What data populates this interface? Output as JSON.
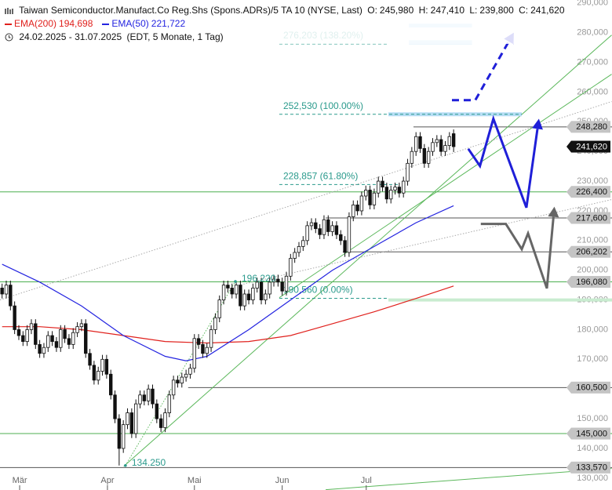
{
  "chart_data": {
    "type": "candlestick",
    "title": "Taiwan Semiconductor.Manufact.Co Reg.Shs (Spons.ADRs)/5 TA 10 (NYSE, Last)",
    "header_values": [
      {
        "name": "O:",
        "value": 245980,
        "label": "245,980"
      },
      {
        "name": "H:",
        "value": 247410,
        "label": "247,410"
      },
      {
        "name": "L:",
        "value": 239800,
        "label": "239,800"
      },
      {
        "name": "C:",
        "value": 241620,
        "label": "241,620"
      }
    ],
    "period": "24.02.2025 - 31.07.2025",
    "period_note": "(EDT, 5 Monate, 1 Tag)",
    "xlim": [
      0.5,
      137.5
    ],
    "ylim": [
      126000,
      291000
    ],
    "xticks": [
      {
        "value": 5.2,
        "label": "Mär"
      },
      {
        "value": 26.2,
        "label": "Apr"
      },
      {
        "value": 47,
        "label": "Mai"
      },
      {
        "value": 68,
        "label": "Jun"
      },
      {
        "value": 88.1,
        "label": "Jul"
      }
    ],
    "yticks": [
      {
        "value": 130000,
        "label": "130,000"
      },
      {
        "value": 140000,
        "label": "140,000"
      },
      {
        "value": 150000,
        "label": "150,000"
      },
      {
        "value": 160000,
        "label": "160,000"
      },
      {
        "value": 170000,
        "label": "170,000"
      },
      {
        "value": 180000,
        "label": "180,000"
      },
      {
        "value": 190000,
        "label": "190,000"
      },
      {
        "value": 200000,
        "label": "200,000"
      },
      {
        "value": 210000,
        "label": "210,000"
      },
      {
        "value": 220000,
        "label": "220,000"
      },
      {
        "value": 230000,
        "label": "230,000"
      },
      {
        "value": 240000,
        "label": "240,000"
      },
      {
        "value": 250000,
        "label": "250,000"
      },
      {
        "value": 260000,
        "label": "260,000"
      },
      {
        "value": 270000,
        "label": "270,000"
      },
      {
        "value": 280000,
        "label": "280,000"
      },
      {
        "value": 290000,
        "label": "290,000"
      }
    ],
    "candles": {
      "open": [
        194000,
        192000,
        195000,
        188000,
        180000,
        178000,
        176000,
        180000,
        182000,
        175000,
        172000,
        174000,
        178000,
        176000,
        174000,
        180000,
        177000,
        175000,
        179000,
        181000,
        182000,
        172000,
        168000,
        163000,
        166000,
        170000,
        165000,
        158000,
        150000,
        140000,
        148000,
        152000,
        145000,
        155000,
        158000,
        156000,
        160000,
        155000,
        150000,
        147000,
        152000,
        158000,
        163000,
        162000,
        164000,
        165000,
        167000,
        177000,
        175000,
        172000,
        174000,
        180000,
        184000,
        190000,
        195000,
        194000,
        192000,
        195000,
        188000,
        192000,
        190000,
        194000,
        196000,
        190000,
        192000,
        196000,
        197000,
        196000,
        193000,
        198000,
        204000,
        206000,
        208000,
        210000,
        215000,
        216000,
        214000,
        212000,
        217000,
        213000,
        215000,
        212000,
        210000,
        206000,
        218000,
        222000,
        220000,
        225000,
        227000,
        222000,
        226000,
        230000,
        228000,
        224000,
        227000,
        228000,
        226000,
        230000,
        236000,
        240000,
        245000,
        241000,
        236000,
        240000,
        243000,
        244000,
        240000,
        242000,
        245980
      ],
      "high": [
        195500,
        196500,
        196500,
        189500,
        181500,
        179500,
        181500,
        183500,
        183500,
        176500,
        175500,
        179500,
        179500,
        177500,
        181500,
        181500,
        178500,
        180500,
        182500,
        183500,
        183500,
        173500,
        169500,
        167500,
        171500,
        171500,
        166500,
        159500,
        151500,
        149500,
        153500,
        153500,
        156500,
        159500,
        159500,
        161500,
        161500,
        156500,
        151500,
        153500,
        159500,
        164500,
        164500,
        165500,
        166500,
        168500,
        178500,
        178500,
        176500,
        175500,
        181500,
        185500,
        191500,
        196500,
        196500,
        195500,
        196500,
        196500,
        193500,
        193500,
        195500,
        197500,
        197500,
        193500,
        197500,
        198500,
        198500,
        197500,
        199500,
        205500,
        207500,
        209500,
        211500,
        216500,
        217500,
        217500,
        215500,
        218500,
        218500,
        216500,
        216500,
        213500,
        211500,
        219500,
        223500,
        223500,
        226500,
        228500,
        228500,
        227500,
        231500,
        231500,
        229500,
        228500,
        229500,
        229500,
        231500,
        237500,
        241500,
        246500,
        246500,
        242500,
        241500,
        244500,
        245500,
        245500,
        243500,
        246500,
        247410
      ],
      "low": [
        190500,
        190500,
        186500,
        178500,
        176500,
        174500,
        174500,
        178500,
        173500,
        170500,
        170500,
        172500,
        174500,
        172500,
        172500,
        175500,
        173500,
        173500,
        177500,
        179500,
        170500,
        166500,
        161500,
        161500,
        164500,
        163500,
        156500,
        148500,
        134250,
        138500,
        146500,
        143500,
        143500,
        153500,
        154500,
        154500,
        153500,
        148500,
        145500,
        145500,
        150500,
        156500,
        160500,
        160500,
        162500,
        163500,
        165500,
        173500,
        170500,
        170500,
        172500,
        178500,
        182500,
        188500,
        192500,
        190500,
        190500,
        186500,
        186500,
        188500,
        188500,
        192500,
        188500,
        188500,
        190500,
        194500,
        194500,
        191500,
        191500,
        196500,
        202500,
        204500,
        206500,
        208500,
        213500,
        212500,
        210500,
        210500,
        211500,
        211500,
        210500,
        208500,
        204500,
        204500,
        216500,
        218500,
        218500,
        223500,
        220500,
        220500,
        224500,
        226500,
        222500,
        222500,
        225500,
        224500,
        224500,
        228500,
        234500,
        238500,
        239500,
        234500,
        234500,
        238500,
        241500,
        238500,
        238500,
        240500,
        239800
      ],
      "close": [
        192000,
        195000,
        188000,
        180000,
        178000,
        176000,
        180000,
        182000,
        175000,
        172000,
        174000,
        178000,
        176000,
        174000,
        180000,
        177000,
        175000,
        179000,
        181000,
        182000,
        172000,
        168000,
        163000,
        166000,
        170000,
        165000,
        158000,
        150000,
        140000,
        148000,
        152000,
        145000,
        155000,
        158000,
        156000,
        160000,
        155000,
        150000,
        147000,
        152000,
        158000,
        163000,
        162000,
        164000,
        165000,
        167000,
        177000,
        175000,
        172000,
        174000,
        180000,
        184000,
        190000,
        195000,
        194000,
        192000,
        195000,
        188000,
        192000,
        190000,
        194000,
        196000,
        190000,
        192000,
        196000,
        197000,
        196000,
        193000,
        198000,
        204000,
        206000,
        208000,
        210000,
        215000,
        216000,
        214000,
        212000,
        217000,
        213000,
        215000,
        212000,
        210000,
        206000,
        218000,
        222000,
        220000,
        225000,
        227000,
        222000,
        226000,
        230000,
        228000,
        224000,
        227000,
        228000,
        226000,
        230000,
        236000,
        240000,
        245000,
        241000,
        236000,
        240000,
        243000,
        244000,
        240000,
        242000,
        245000,
        241620
      ]
    },
    "series": [
      {
        "name": "EMA(200)",
        "color": "#e0211d",
        "last_value_label": "194,698",
        "x": [
          1,
          10,
          20,
          30,
          40,
          50,
          60,
          70,
          80,
          90,
          100,
          109
        ],
        "values": [
          181000,
          181000,
          180000,
          178000,
          176000,
          175500,
          176000,
          178000,
          182000,
          186000,
          190500,
          194698
        ]
      },
      {
        "name": "EMA(50)",
        "color": "#2424e0",
        "last_value_label": "221,722",
        "x": [
          1,
          10,
          20,
          30,
          40,
          45,
          50,
          60,
          70,
          80,
          90,
          100,
          109
        ],
        "values": [
          202000,
          196000,
          188000,
          178000,
          171000,
          169500,
          171000,
          180000,
          190000,
          200000,
          208000,
          216000,
          221722
        ]
      }
    ],
    "levels": [
      {
        "value": 248280,
        "label": "248,280",
        "x0": 99.4,
        "color": "#555555"
      },
      {
        "value": 226400,
        "label": "226,400",
        "x0": 0.5,
        "color": "#4caf50"
      },
      {
        "value": 217600,
        "label": "217,600",
        "x0": 78.4,
        "color": "#555555"
      },
      {
        "value": 206202,
        "label": "206,202",
        "x0": 82.5,
        "color": "#555555"
      },
      {
        "value": 196080,
        "label": "196,080",
        "x0": 0.5,
        "color": "#4caf50"
      },
      {
        "value": 160500,
        "label": "160,500",
        "x0": 45.5,
        "color": "#555555"
      },
      {
        "value": 145000,
        "label": "145,000",
        "x0": 0.5,
        "color": "#4caf50"
      },
      {
        "value": 133570,
        "label": "133,570",
        "x0": 0.5,
        "color": "#555555"
      }
    ],
    "last_price": {
      "value": 241620,
      "label": "241,620"
    },
    "bands": [
      {
        "value": 190000,
        "x0": 93.4,
        "color": "#c9ecd0"
      }
    ],
    "highlight_bars": [
      {
        "value": 282400,
        "x": [
          98.3,
          113.4
        ]
      },
      {
        "value": 276800,
        "x": [
          98.3,
          113.4
        ]
      },
      {
        "value": 252530,
        "x": [
          93.4,
          125.3
        ]
      }
    ],
    "highlight_color": "#b7ddf5",
    "fibonacci": [
      {
        "value": 276203,
        "label": "276,203 (138.20%)",
        "x": [
          67.3,
          93.4
        ]
      },
      {
        "value": 252530,
        "label": "252,530 (100.00%)",
        "x": [
          67.3,
          125.3
        ]
      },
      {
        "value": 228857,
        "label": "228,857 (61.80%)",
        "x": [
          67.3,
          96.2
        ]
      },
      {
        "value": 190560,
        "label": "190,560 (0.00%)",
        "x": [
          67.3,
          93.4
        ]
      }
    ],
    "fib_color": "#2a9a8c",
    "points": [
      {
        "value": 196220,
        "label": "196,220",
        "x": 56.8
      },
      {
        "value": 134250,
        "label": "134.250",
        "x": 30.5
      }
    ],
    "trendlines": [
      {
        "x": [
          30.1,
          146.8
        ],
        "values": [
          134000,
          279200
        ],
        "color": "#5cb85c",
        "style": "solid"
      },
      {
        "x": [
          67.3,
          146.8
        ],
        "values": [
          190770,
          266000
        ],
        "color": "#5cb85c",
        "style": "solid"
      },
      {
        "x": [
          78.4,
          146.8
        ],
        "values": [
          126100,
          133220
        ],
        "color": "#5cb85c",
        "style": "solid"
      },
      {
        "x": [
          0.5,
          146.8
        ],
        "values": [
          190000,
          256800
        ],
        "color": "#aaaaaa",
        "style": "dotted"
      },
      {
        "x": [
          56.8,
          146.8
        ],
        "values": [
          194700,
          223800
        ],
        "color": "#aaaaaa",
        "style": "dotted"
      },
      {
        "x": [
          30.5,
          56.8
        ],
        "values": [
          134250,
          196220
        ],
        "color": "#5cb85c",
        "style": "dotted"
      }
    ],
    "projections": [
      {
        "x": [
          108.6,
          114.2,
          123.4
        ],
        "values": [
          257300,
          257300,
          280000
        ],
        "color": "#1f1fd8",
        "style": "dashed"
      },
      {
        "x": [
          112.5,
          115.3,
          118.5,
          126.4,
          129.4
        ],
        "values": [
          240900,
          235100,
          251000,
          221100,
          251000
        ],
        "color": "#1f1fd8",
        "style": "solid"
      },
      {
        "x": [
          115.5,
          121.5,
          125.3,
          126.8,
          131.3,
          133.1
        ],
        "values": [
          215600,
          215600,
          207100,
          212400,
          193900,
          221400
        ],
        "color": "#666666",
        "style": "solid"
      }
    ]
  }
}
